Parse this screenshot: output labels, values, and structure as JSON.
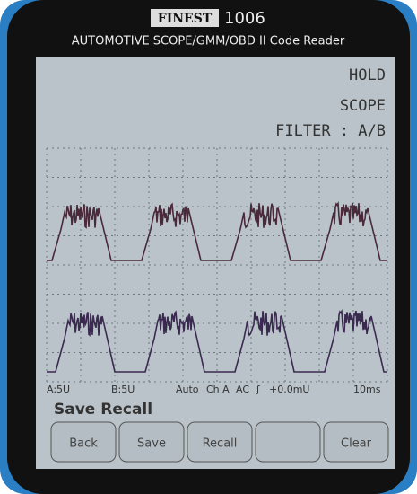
{
  "header": {
    "brand": "FINEST",
    "model": "1006",
    "subtitle": "AUTOMOTIVE SCOPE/GMM/OBD II Code Reader"
  },
  "status": {
    "hold": "HOLD",
    "mode": "SCOPE",
    "filter": "FILTER : A/B"
  },
  "scope_bar": [
    "A:5U",
    "B:5U",
    "Auto",
    "Ch A",
    "AC",
    "ʃ",
    "+0.0mU",
    "10ms"
  ],
  "menu_title": "Save Recall",
  "buttons": [
    "Back",
    "Save",
    "Recall",
    "Clear"
  ]
}
